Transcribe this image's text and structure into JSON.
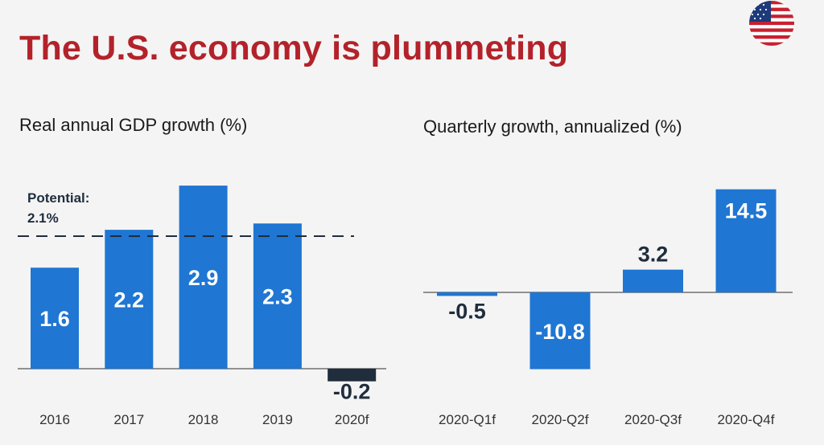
{
  "slide": {
    "title": "The U.S. economy is plummeting",
    "flag_icon": "us-flag-icon"
  },
  "chart_data": [
    {
      "type": "bar",
      "title": "Real annual GDP growth (%)",
      "categories": [
        "2016",
        "2017",
        "2018",
        "2019",
        "2020f"
      ],
      "values": [
        1.6,
        2.2,
        2.9,
        2.3,
        -0.2
      ],
      "value_labels": [
        "1.6",
        "2.2",
        "2.9",
        "2.3",
        "-0.2"
      ],
      "bar_colors": [
        "#1f76d3",
        "#1f76d3",
        "#1f76d3",
        "#1f76d3",
        "#1f2d3d"
      ],
      "reference_line": {
        "value": 2.1,
        "label_line1": "Potential:",
        "label_line2": "2.1%",
        "style": "dashed"
      },
      "ylim": [
        -0.4,
        3.0
      ],
      "grid": false,
      "legend": "none"
    },
    {
      "type": "bar",
      "title": "Quarterly growth, annualized (%)",
      "categories": [
        "2020-Q1f",
        "2020-Q2f",
        "2020-Q3f",
        "2020-Q4f"
      ],
      "values": [
        -0.5,
        -10.8,
        3.2,
        14.5
      ],
      "value_labels": [
        "-0.5",
        "-10.8",
        "3.2",
        "14.5"
      ],
      "bar_colors": [
        "#1f76d3",
        "#1f76d3",
        "#1f76d3",
        "#1f76d3"
      ],
      "ylim": [
        -11.5,
        15.0
      ],
      "grid": false,
      "legend": "none"
    }
  ],
  "colors": {
    "title": "#b3222a",
    "bar": "#1f76d3",
    "forecast_bar": "#1f2d3d",
    "label_dark": "#1f2d3d",
    "label_light": "#ffffff",
    "axis": "#555555"
  }
}
